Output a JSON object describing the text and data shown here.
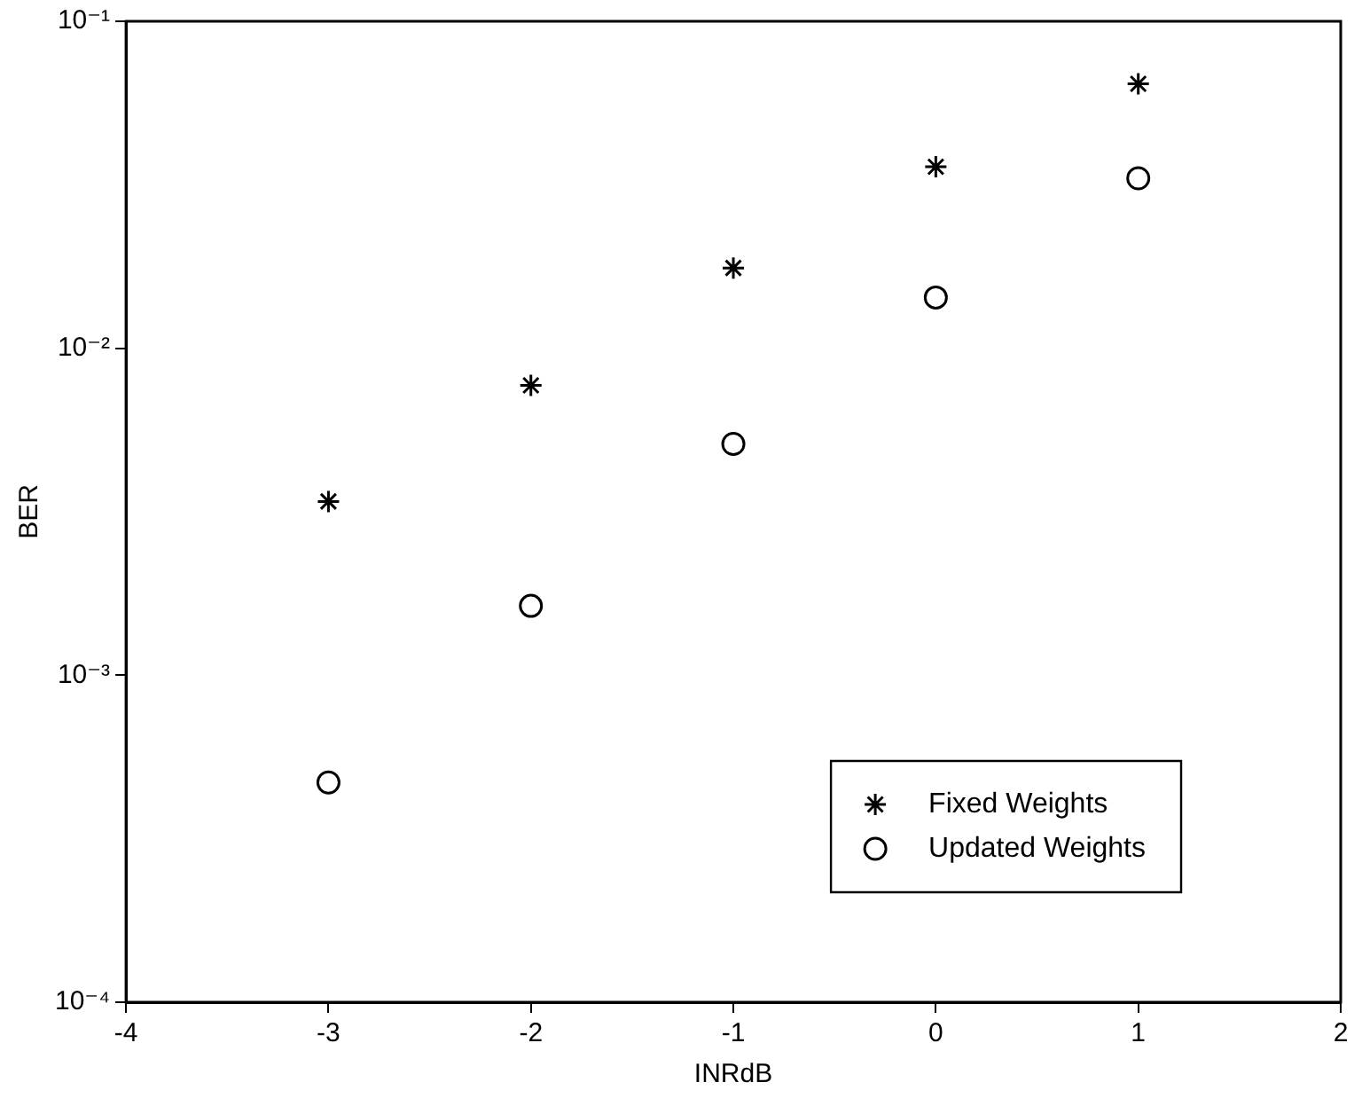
{
  "chart_data": {
    "type": "scatter",
    "xlabel": "INRdB",
    "ylabel": "BER",
    "x": [
      -3,
      -2,
      -1,
      0,
      1
    ],
    "series": [
      {
        "name": "Fixed Weights",
        "color": "#000000",
        "marker": "cross",
        "values": [
          0.0034,
          0.0077,
          0.0176,
          0.0359,
          0.0644
        ]
      },
      {
        "name": "Updated Weights",
        "color": "#000000",
        "marker": "circle",
        "values": [
          0.00047,
          0.00163,
          0.0051,
          0.0143,
          0.0331
        ]
      }
    ],
    "log": "y",
    "grid": false,
    "legend": "bottom right",
    "xlim": [
      -4,
      2
    ],
    "xticks": [
      -4,
      -3,
      -2,
      -1,
      0,
      1,
      2
    ],
    "ylim": [
      0.0001,
      0.1
    ],
    "yticks": [
      {
        "value": 0.0001,
        "label": "10⁻⁴"
      },
      {
        "value": 0.001,
        "label": "10⁻³"
      },
      {
        "value": 0.01,
        "label": "10⁻²"
      },
      {
        "value": 0.1,
        "label": "10⁻¹"
      }
    ]
  }
}
